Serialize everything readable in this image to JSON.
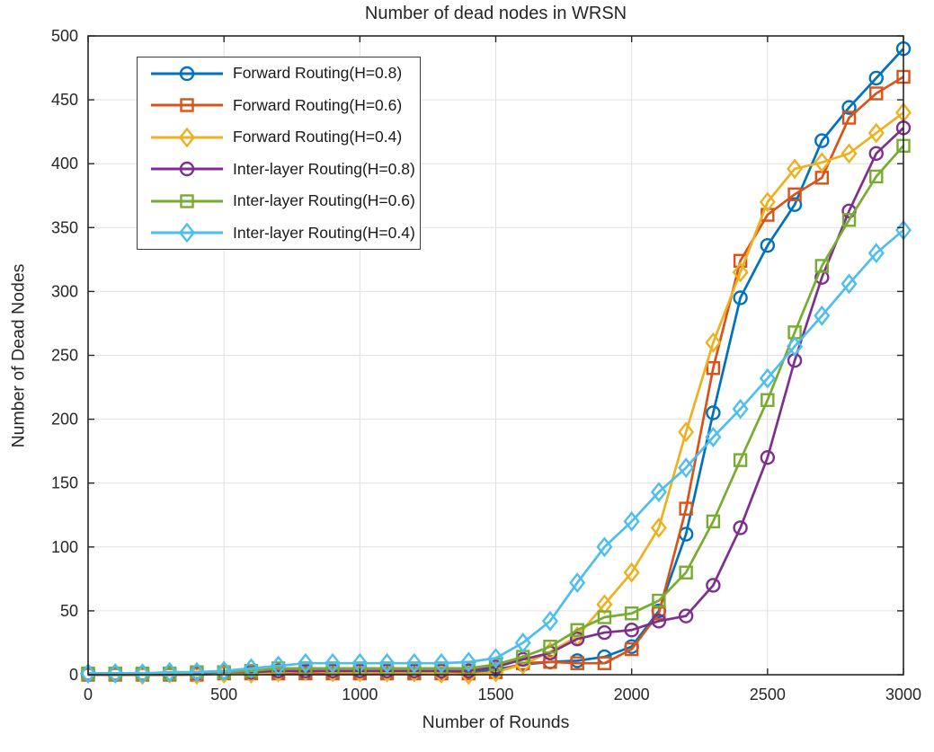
{
  "chart_data": {
    "type": "line",
    "title": "Number of dead nodes in WRSN",
    "xlabel": "Number of Rounds",
    "ylabel": "Number of Dead Nodes",
    "xlim": [
      0,
      3000
    ],
    "ylim": [
      0,
      500
    ],
    "xticks": [
      0,
      500,
      1000,
      1500,
      2000,
      2500,
      3000
    ],
    "yticks": [
      0,
      50,
      100,
      150,
      200,
      250,
      300,
      350,
      400,
      450,
      500
    ],
    "grid": true,
    "legend_position": "top-left-inside",
    "axis_color": "#262626",
    "grid_color": "#e0e0e0",
    "x": [
      0,
      100,
      200,
      300,
      400,
      500,
      600,
      700,
      800,
      900,
      1000,
      1100,
      1200,
      1300,
      1400,
      1500,
      1600,
      1700,
      1800,
      1900,
      2000,
      2100,
      2200,
      2300,
      2400,
      2500,
      2600,
      2700,
      2800,
      2900,
      3000
    ],
    "series": [
      {
        "name": "Forward Routing(H=0.8)",
        "color": "#0072BD",
        "marker": "circle",
        "values": [
          0,
          0,
          0,
          0,
          1,
          1,
          1,
          2,
          2,
          2,
          2,
          2,
          2,
          2,
          2,
          4,
          8,
          10,
          11,
          14,
          22,
          50,
          110,
          205,
          295,
          336,
          368,
          418,
          444,
          467,
          490
        ]
      },
      {
        "name": "Forward Routing(H=0.6)",
        "color": "#D95319",
        "marker": "square",
        "values": [
          0,
          0,
          0,
          0,
          0,
          1,
          1,
          1,
          1,
          1,
          1,
          1,
          1,
          1,
          1,
          2,
          9,
          10,
          9,
          9,
          20,
          48,
          130,
          240,
          324,
          360,
          376,
          389,
          436,
          455,
          468
        ]
      },
      {
        "name": "Forward Routing(H=0.4)",
        "color": "#EDB120",
        "marker": "diamond",
        "values": [
          1,
          1,
          0,
          1,
          0,
          1,
          1,
          2,
          3,
          2,
          2,
          2,
          2,
          1,
          0,
          2,
          8,
          18,
          30,
          55,
          80,
          115,
          190,
          260,
          315,
          370,
          396,
          401,
          408,
          424,
          440
        ]
      },
      {
        "name": "Inter-layer Routing(H=0.8)",
        "color": "#7E2F8E",
        "marker": "circle",
        "values": [
          1,
          1,
          1,
          1,
          1,
          2,
          2,
          3,
          3,
          3,
          3,
          3,
          3,
          3,
          3,
          6,
          12,
          17,
          28,
          33,
          35,
          42,
          46,
          70,
          115,
          170,
          246,
          311,
          363,
          408,
          428
        ]
      },
      {
        "name": "Inter-layer Routing(H=0.6)",
        "color": "#77AC30",
        "marker": "square",
        "values": [
          1,
          1,
          1,
          1,
          2,
          2,
          3,
          5,
          5,
          5,
          5,
          5,
          5,
          5,
          5,
          8,
          14,
          22,
          35,
          45,
          48,
          58,
          80,
          120,
          168,
          215,
          268,
          320,
          356,
          390,
          414
        ]
      },
      {
        "name": "Inter-layer Routing(H=0.4)",
        "color": "#4DBEEE",
        "marker": "diamond",
        "values": [
          1,
          1,
          1,
          2,
          2,
          3,
          5,
          7,
          9,
          9,
          9,
          9,
          9,
          9,
          10,
          13,
          25,
          42,
          72,
          100,
          120,
          143,
          162,
          186,
          208,
          232,
          257,
          281,
          306,
          330,
          348
        ]
      }
    ]
  }
}
